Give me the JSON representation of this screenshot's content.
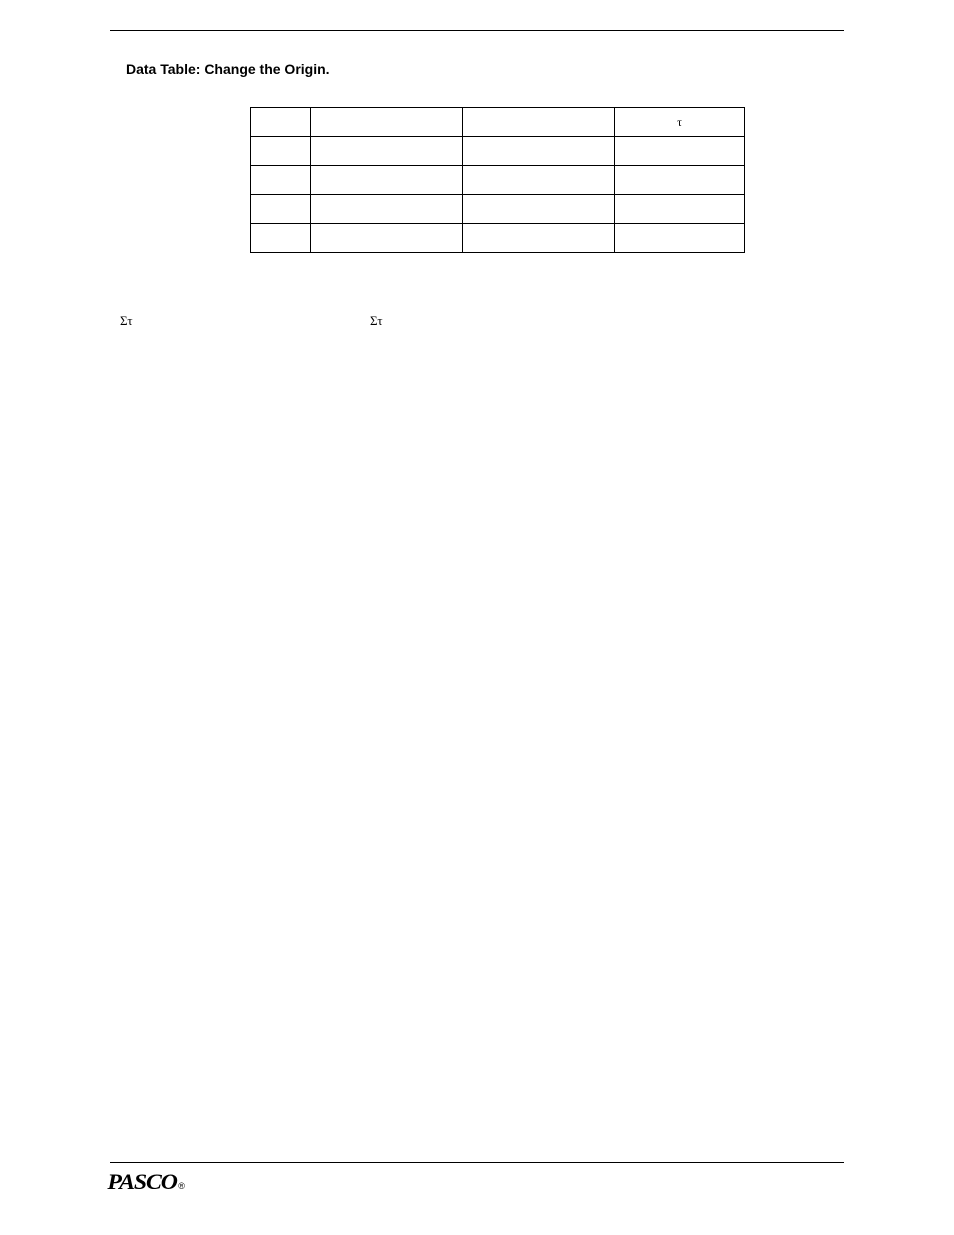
{
  "heading": "Data Table: Change the Origin.",
  "table": {
    "headers": {
      "col1": "",
      "col2": "",
      "col3": "",
      "col4": "τ"
    },
    "rows": [
      [
        "",
        "",
        "",
        ""
      ],
      [
        "",
        "",
        "",
        ""
      ],
      [
        "",
        "",
        "",
        ""
      ],
      [
        "",
        "",
        "",
        ""
      ]
    ]
  },
  "sigmaLine": {
    "left": "Στ",
    "right": "Στ"
  },
  "footer": {
    "logo": "PASCO",
    "reg": "®"
  }
}
